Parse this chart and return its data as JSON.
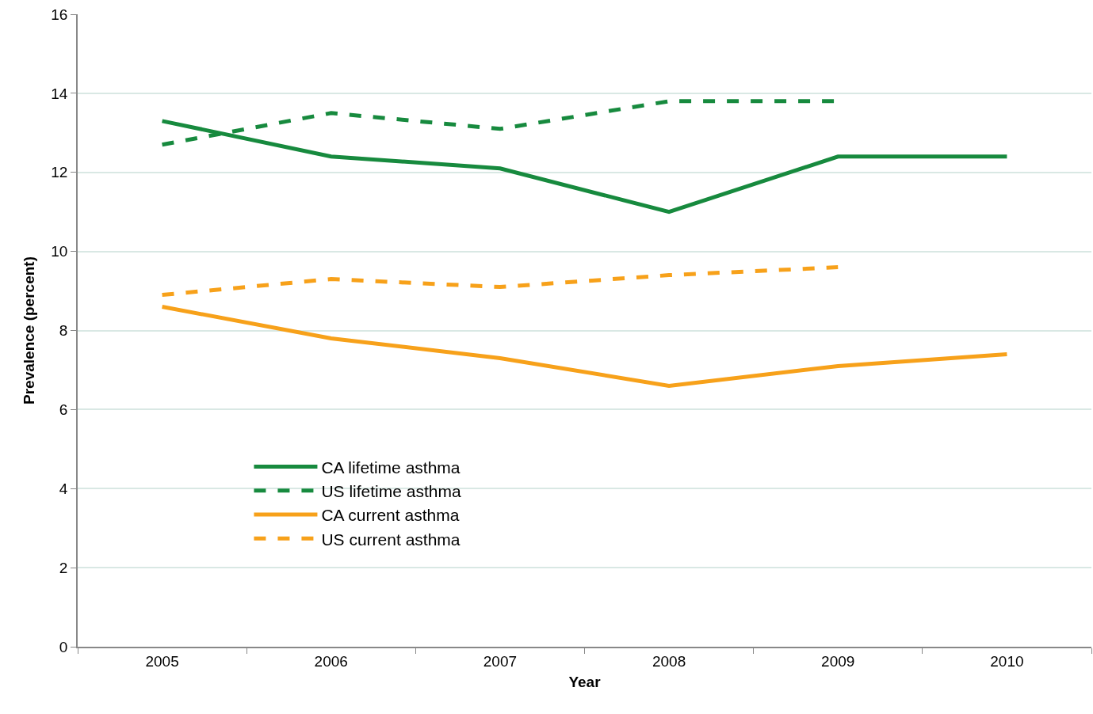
{
  "chart_data": {
    "type": "line",
    "xlabel": "Year",
    "ylabel": "Prevalence (percent)",
    "categories": [
      "2005",
      "2006",
      "2007",
      "2008",
      "2009",
      "2010"
    ],
    "series": [
      {
        "name": "CA lifetime asthma",
        "color": "#178a3e",
        "line_style": "solid",
        "values": [
          13.3,
          12.4,
          12.1,
          11.0,
          12.4,
          12.4
        ]
      },
      {
        "name": "US lifetime asthma",
        "color": "#178a3e",
        "line_style": "dashed",
        "values": [
          12.7,
          13.5,
          13.1,
          13.8,
          13.8,
          null
        ]
      },
      {
        "name": "CA current asthma",
        "color": "#f7a11a",
        "line_style": "solid",
        "values": [
          8.6,
          7.8,
          7.3,
          6.6,
          7.1,
          7.4
        ]
      },
      {
        "name": "US current asthma",
        "color": "#f7a11a",
        "line_style": "dashed",
        "values": [
          8.9,
          9.3,
          9.1,
          9.4,
          9.6,
          null
        ]
      }
    ],
    "ylim": [
      0,
      16
    ],
    "yticks": [
      0,
      2,
      4,
      6,
      8,
      10,
      12,
      14,
      16
    ],
    "grid": "y",
    "legend": "bottom left",
    "marker": "none"
  }
}
